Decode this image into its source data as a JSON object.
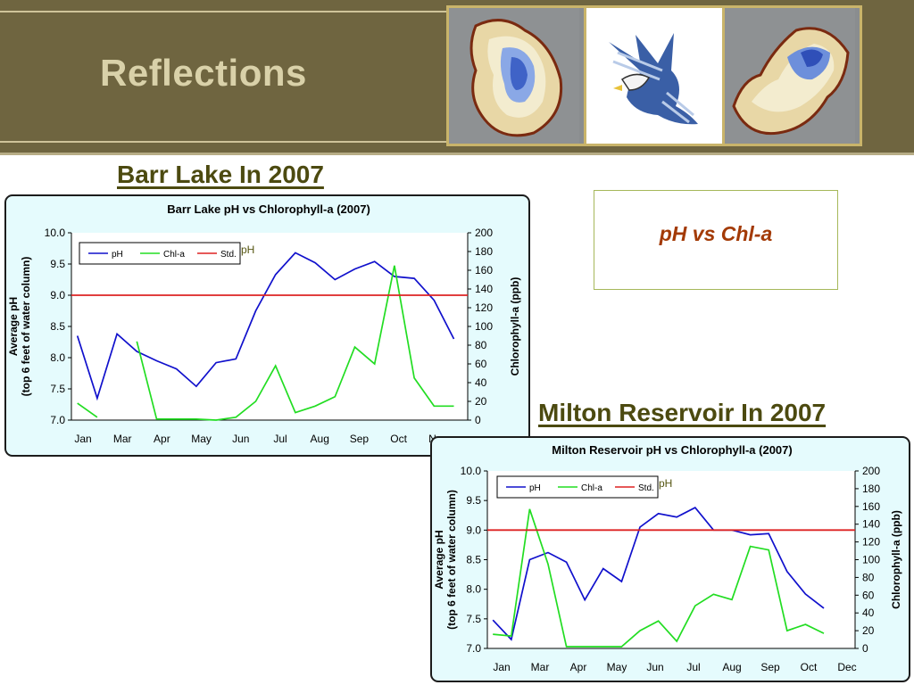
{
  "slide": {
    "title": "Reflections",
    "callout_text": "pH vs Chl-a"
  },
  "barr": {
    "section_title": "Barr Lake In 2007",
    "chart_title": "Barr Lake pH vs Chlorophyll-a (2007)"
  },
  "milton": {
    "section_title": "Milton Reservoir In 2007",
    "chart_title": "Milton Reservoir pH vs Chlorophyll-a (2007)"
  },
  "header_images": [
    "lake-contour-map",
    "eagle-logo",
    "reservoir-contour-map"
  ],
  "colors": {
    "ph": "#1010cc",
    "chla": "#22dd22",
    "std": "#dd2222",
    "section_title": "#4c4a10",
    "callout_text": "#a33a05",
    "header_bg": "#6f6540",
    "chart_bg": "#e5fbfd"
  },
  "chart_data": [
    {
      "type": "line",
      "title": "Barr Lake pH vs Chlorophyll-a (2007)",
      "ylabel": "Average pH",
      "ylabel2": "(top 6 feet of water column)",
      "y2label": "Chlorophyll-a (ppb)",
      "ylim": [
        7.0,
        10.0
      ],
      "y2lim": [
        0,
        200
      ],
      "yticks": [
        "10.0",
        "9.5",
        "9.0",
        "8.5",
        "8.0",
        "7.5",
        "7.0"
      ],
      "y2ticks": [
        "200",
        "180",
        "160",
        "140",
        "120",
        "100",
        "80",
        "60",
        "40",
        "20",
        "0"
      ],
      "month_labels": [
        "Jan",
        "Mar",
        "Apr",
        "May",
        "Jun",
        "Jul",
        "Aug",
        "Sep",
        "Oct",
        "Nov"
      ],
      "legend_ph_text": "pH",
      "legend_position": "top-left",
      "series": [
        {
          "name": "pH",
          "axis": "left",
          "x": [
            1,
            1.5,
            2,
            2.5,
            3,
            3.5,
            4,
            4.5,
            5,
            5.5,
            6,
            6.5,
            7,
            7.5,
            8,
            8.5,
            9,
            9.5,
            10,
            10.5,
            11
          ],
          "values": [
            8.35,
            7.35,
            8.38,
            8.1,
            7.95,
            7.82,
            7.54,
            7.92,
            7.98,
            8.75,
            9.33,
            9.68,
            9.52,
            9.25,
            9.42,
            9.54,
            9.3,
            9.27,
            8.92,
            8.3,
            null
          ]
        },
        {
          "name": "Chl-a",
          "axis": "right",
          "x": [
            1,
            1.5,
            2,
            2.5,
            3,
            3.5,
            4,
            4.5,
            5,
            5.5,
            6,
            6.5,
            7,
            7.5,
            8,
            8.5,
            9,
            9.5,
            10,
            10.5,
            11
          ],
          "values": [
            18,
            3,
            null,
            84,
            1,
            1,
            1,
            0,
            3,
            20,
            58,
            8,
            15,
            25,
            78,
            60,
            165,
            45,
            15,
            15,
            null
          ]
        },
        {
          "name": "Std.",
          "axis": "left",
          "x": [
            0.85,
            10.85
          ],
          "values": [
            9.0,
            9.0
          ]
        }
      ]
    },
    {
      "type": "line",
      "title": "Milton Reservoir pH vs Chlorophyll-a (2007)",
      "ylabel": "Average pH",
      "ylabel2": "(top 6 feet of water column)",
      "y2label": "Chlorophyll-a (ppb)",
      "ylim": [
        7.0,
        10.0
      ],
      "y2lim": [
        0,
        200
      ],
      "yticks": [
        "10.0",
        "9.5",
        "9.0",
        "8.5",
        "8.0",
        "7.5",
        "7.0"
      ],
      "y2ticks": [
        "200",
        "180",
        "160",
        "140",
        "120",
        "100",
        "80",
        "60",
        "40",
        "20",
        "0"
      ],
      "month_labels": [
        "Jan",
        "Mar",
        "Apr",
        "May",
        "Jun",
        "Jul",
        "Aug",
        "Sep",
        "Oct",
        "Dec"
      ],
      "legend_ph_text": "pH",
      "legend_position": "top-left",
      "series": [
        {
          "name": "pH",
          "axis": "left",
          "x": [
            1,
            1.5,
            2,
            2.5,
            3,
            3.5,
            4,
            4.5,
            5,
            5.5,
            6,
            6.5,
            7,
            7.5,
            8,
            8.5,
            9,
            9.5,
            10,
            10.5
          ],
          "values": [
            7.48,
            7.15,
            8.5,
            8.62,
            8.46,
            7.82,
            8.35,
            8.13,
            9.05,
            9.28,
            9.22,
            9.38,
            9.0,
            9.0,
            8.92,
            8.94,
            8.3,
            7.92,
            7.68,
            null
          ]
        },
        {
          "name": "Chl-a",
          "axis": "right",
          "x": [
            1,
            1.5,
            2,
            2.5,
            3,
            3.5,
            4,
            4.5,
            5,
            5.5,
            6,
            6.5,
            7,
            7.5,
            8,
            8.5,
            9,
            9.5,
            10,
            10.5
          ],
          "values": [
            16,
            14,
            157,
            95,
            2,
            2,
            2,
            2,
            20,
            31,
            8,
            48,
            61,
            55,
            115,
            111,
            20,
            27,
            17,
            null
          ]
        },
        {
          "name": "Std.",
          "axis": "left",
          "x": [
            0.85,
            10.85
          ],
          "values": [
            9.0,
            9.0
          ]
        }
      ]
    }
  ]
}
